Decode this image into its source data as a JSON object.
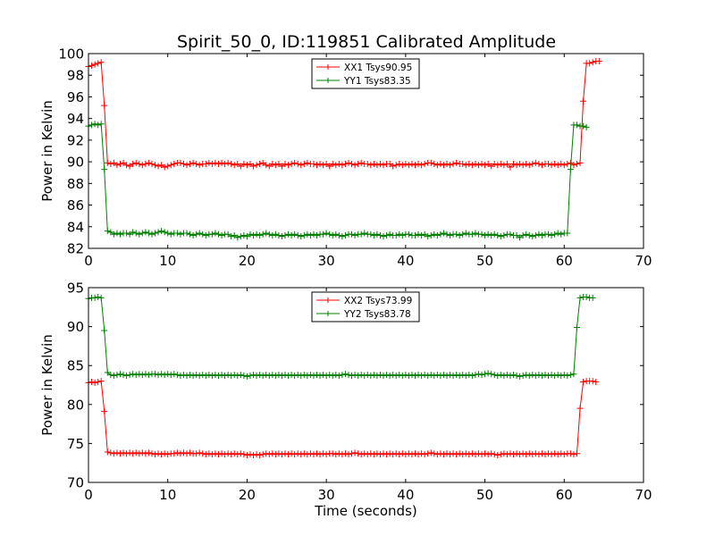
{
  "figure": {
    "title": "Spirit_50_0, ID:119851 Calibrated Amplitude"
  },
  "chart_data": [
    {
      "type": "line",
      "title": "Spirit_50_0, ID:119851 Calibrated Amplitude",
      "xlabel": "",
      "ylabel": "Power in Kelvin",
      "xlim": [
        0,
        70
      ],
      "ylim": [
        82,
        100
      ],
      "xticks": [
        0,
        10,
        20,
        30,
        40,
        50,
        60,
        70
      ],
      "yticks": [
        82,
        84,
        86,
        88,
        90,
        92,
        94,
        96,
        98,
        100
      ],
      "grid": false,
      "legend_position": "top-center",
      "x_start": 0.0,
      "x_step": 0.4,
      "series": [
        {
          "name": "XX1 Tsys90.95",
          "color": "#ff0000",
          "values": [
            98.8,
            98.9,
            99.0,
            99.1,
            99.2,
            95.2,
            89.9,
            89.8,
            89.9,
            89.7,
            89.8,
            89.9,
            89.7,
            89.6,
            89.8,
            89.9,
            89.8,
            89.7,
            89.8,
            89.9,
            89.8,
            89.7,
            89.6,
            89.7,
            89.5,
            89.6,
            89.7,
            89.8,
            89.9,
            89.9,
            89.8,
            89.7,
            89.8,
            89.9,
            89.8,
            89.7,
            89.8,
            89.8,
            89.9,
            89.8,
            89.9,
            89.8,
            89.9,
            89.8,
            89.9,
            89.8,
            89.7,
            89.8,
            89.6,
            89.8,
            89.7,
            89.8,
            89.6,
            89.7,
            89.8,
            89.9,
            89.7,
            89.6,
            89.8,
            89.7,
            89.8,
            89.6,
            89.8,
            89.7,
            89.8,
            89.9,
            89.8,
            89.7,
            89.8,
            89.9,
            89.8,
            89.8,
            89.7,
            89.8,
            89.7,
            89.8,
            89.6,
            89.8,
            89.7,
            89.8,
            89.7,
            89.8,
            89.9,
            89.8,
            89.7,
            89.8,
            89.9,
            89.8,
            89.8,
            89.7,
            89.8,
            89.7,
            89.8,
            89.7,
            89.8,
            89.8,
            89.6,
            89.7,
            89.8,
            89.7,
            89.8,
            89.7,
            89.8,
            89.7,
            89.8,
            89.7,
            89.8,
            89.9,
            89.9,
            89.8,
            89.7,
            89.8,
            89.7,
            89.8,
            89.7,
            89.8,
            89.9,
            89.8,
            89.8,
            89.7,
            89.8,
            89.7,
            89.8,
            89.7,
            89.8,
            89.7,
            89.8,
            89.6,
            89.8,
            89.7,
            89.8,
            89.7,
            89.8,
            89.5,
            89.8,
            89.7,
            89.8,
            89.7,
            89.8,
            89.7,
            89.8,
            89.9,
            89.8,
            89.7,
            89.8,
            89.8,
            89.7,
            89.8,
            89.7,
            89.8,
            89.7,
            89.8,
            89.9,
            89.7,
            89.8,
            89.9,
            95.6,
            99.1,
            99.1,
            99.2,
            99.3,
            99.3
          ]
        },
        {
          "name": "YY1 Tsys83.35",
          "color": "#008000",
          "values": [
            93.3,
            93.4,
            93.5,
            93.4,
            93.5,
            89.3,
            83.6,
            83.5,
            83.3,
            83.4,
            83.3,
            83.4,
            83.4,
            83.3,
            83.5,
            83.4,
            83.3,
            83.4,
            83.5,
            83.4,
            83.3,
            83.4,
            83.5,
            83.6,
            83.5,
            83.4,
            83.3,
            83.4,
            83.4,
            83.3,
            83.4,
            83.4,
            83.3,
            83.2,
            83.3,
            83.4,
            83.3,
            83.2,
            83.3,
            83.3,
            83.4,
            83.3,
            83.2,
            83.3,
            83.3,
            83.1,
            83.2,
            83.0,
            83.1,
            83.2,
            83.1,
            83.3,
            83.2,
            83.3,
            83.2,
            83.3,
            83.4,
            83.3,
            83.2,
            83.3,
            83.2,
            83.1,
            83.2,
            83.3,
            83.2,
            83.3,
            83.2,
            83.1,
            83.2,
            83.3,
            83.2,
            83.3,
            83.2,
            83.3,
            83.3,
            83.4,
            83.3,
            83.2,
            83.3,
            83.2,
            83.1,
            83.2,
            83.3,
            83.3,
            83.2,
            83.3,
            83.3,
            83.4,
            83.3,
            83.3,
            83.2,
            83.3,
            83.2,
            83.1,
            83.2,
            83.3,
            83.2,
            83.2,
            83.3,
            83.2,
            83.3,
            83.3,
            83.2,
            83.2,
            83.3,
            83.2,
            83.3,
            83.1,
            83.2,
            83.3,
            83.2,
            83.3,
            83.4,
            83.3,
            83.2,
            83.3,
            83.3,
            83.2,
            83.3,
            83.4,
            83.3,
            83.3,
            83.4,
            83.3,
            83.3,
            83.2,
            83.3,
            83.2,
            83.3,
            83.2,
            83.1,
            83.2,
            83.3,
            83.3,
            83.2,
            83.2,
            83.0,
            83.2,
            83.3,
            83.2,
            83.1,
            83.2,
            83.3,
            83.2,
            83.3,
            83.3,
            83.2,
            83.3,
            83.4,
            83.3,
            83.4,
            83.4,
            89.3,
            93.4,
            93.4,
            93.3,
            93.3,
            93.2
          ]
        }
      ]
    },
    {
      "type": "line",
      "title": "",
      "xlabel": "Time (seconds)",
      "ylabel": "Power in Kelvin",
      "xlim": [
        0,
        70
      ],
      "ylim": [
        70,
        95
      ],
      "xticks": [
        0,
        10,
        20,
        30,
        40,
        50,
        60,
        70
      ],
      "yticks": [
        70,
        75,
        80,
        85,
        90,
        95
      ],
      "grid": false,
      "legend_position": "top-center",
      "x_start": 0.0,
      "x_step": 0.4,
      "series": [
        {
          "name": "XX2 Tsys73.99",
          "color": "#ff0000",
          "values": [
            82.8,
            82.9,
            82.8,
            82.9,
            83.0,
            79.1,
            73.9,
            73.8,
            73.7,
            73.8,
            73.7,
            73.8,
            73.7,
            73.8,
            73.7,
            73.8,
            73.7,
            73.8,
            73.7,
            73.8,
            73.7,
            73.6,
            73.7,
            73.6,
            73.7,
            73.6,
            73.7,
            73.7,
            73.8,
            73.7,
            73.8,
            73.7,
            73.8,
            73.7,
            73.7,
            73.8,
            73.7,
            73.6,
            73.7,
            73.6,
            73.7,
            73.6,
            73.7,
            73.6,
            73.7,
            73.6,
            73.7,
            73.6,
            73.7,
            73.6,
            73.5,
            73.6,
            73.5,
            73.6,
            73.5,
            73.6,
            73.7,
            73.6,
            73.7,
            73.6,
            73.7,
            73.6,
            73.7,
            73.6,
            73.7,
            73.6,
            73.7,
            73.6,
            73.7,
            73.6,
            73.7,
            73.6,
            73.7,
            73.6,
            73.7,
            73.6,
            73.7,
            73.7,
            73.6,
            73.7,
            73.6,
            73.7,
            73.6,
            73.7,
            73.8,
            73.7,
            73.6,
            73.7,
            73.6,
            73.7,
            73.6,
            73.7,
            73.6,
            73.7,
            73.6,
            73.7,
            73.6,
            73.7,
            73.6,
            73.7,
            73.6,
            73.7,
            73.6,
            73.7,
            73.6,
            73.7,
            73.6,
            73.7,
            73.8,
            73.7,
            73.6,
            73.7,
            73.6,
            73.7,
            73.6,
            73.7,
            73.6,
            73.7,
            73.6,
            73.7,
            73.6,
            73.7,
            73.6,
            73.7,
            73.6,
            73.7,
            73.6,
            73.7,
            73.6,
            73.5,
            73.6,
            73.7,
            73.6,
            73.7,
            73.6,
            73.7,
            73.6,
            73.7,
            73.6,
            73.7,
            73.6,
            73.7,
            73.6,
            73.7,
            73.6,
            73.7,
            73.6,
            73.7,
            73.6,
            73.7,
            73.6,
            73.7,
            73.7,
            73.6,
            73.7,
            79.5,
            82.9,
            83.0,
            83.0,
            83.0,
            82.9
          ]
        },
        {
          "name": "YY2 Tsys83.78",
          "color": "#008000",
          "values": [
            93.6,
            93.7,
            93.7,
            93.8,
            93.7,
            89.5,
            84.1,
            83.8,
            83.7,
            83.8,
            83.9,
            83.8,
            83.7,
            83.8,
            83.9,
            83.8,
            83.9,
            83.8,
            83.9,
            83.8,
            83.9,
            83.9,
            83.8,
            83.9,
            83.8,
            83.9,
            83.8,
            83.9,
            83.8,
            83.7,
            83.8,
            83.7,
            83.8,
            83.7,
            83.8,
            83.7,
            83.8,
            83.7,
            83.8,
            83.7,
            83.8,
            83.7,
            83.8,
            83.7,
            83.8,
            83.7,
            83.8,
            83.7,
            83.8,
            83.7,
            83.6,
            83.7,
            83.8,
            83.7,
            83.8,
            83.7,
            83.8,
            83.7,
            83.8,
            83.7,
            83.8,
            83.7,
            83.8,
            83.7,
            83.8,
            83.7,
            83.8,
            83.7,
            83.8,
            83.7,
            83.8,
            83.7,
            83.8,
            83.7,
            83.8,
            83.7,
            83.8,
            83.7,
            83.8,
            83.7,
            83.8,
            83.9,
            83.8,
            83.7,
            83.8,
            83.7,
            83.8,
            83.7,
            83.8,
            83.7,
            83.8,
            83.7,
            83.8,
            83.7,
            83.8,
            83.7,
            83.8,
            83.7,
            83.8,
            83.7,
            83.8,
            83.7,
            83.8,
            83.7,
            83.8,
            83.7,
            83.8,
            83.7,
            83.8,
            83.7,
            83.8,
            83.7,
            83.8,
            83.7,
            83.8,
            83.7,
            83.8,
            83.7,
            83.8,
            83.7,
            83.8,
            83.7,
            83.8,
            83.9,
            83.8,
            83.9,
            84.0,
            83.9,
            83.8,
            83.7,
            83.8,
            83.7,
            83.8,
            83.7,
            83.8,
            83.7,
            83.6,
            83.7,
            83.8,
            83.7,
            83.8,
            83.7,
            83.8,
            83.7,
            83.8,
            83.7,
            83.8,
            83.7,
            83.8,
            83.7,
            83.8,
            83.7,
            83.8,
            83.9,
            89.9,
            93.7,
            93.8,
            93.8,
            93.7,
            93.7
          ]
        }
      ]
    }
  ]
}
